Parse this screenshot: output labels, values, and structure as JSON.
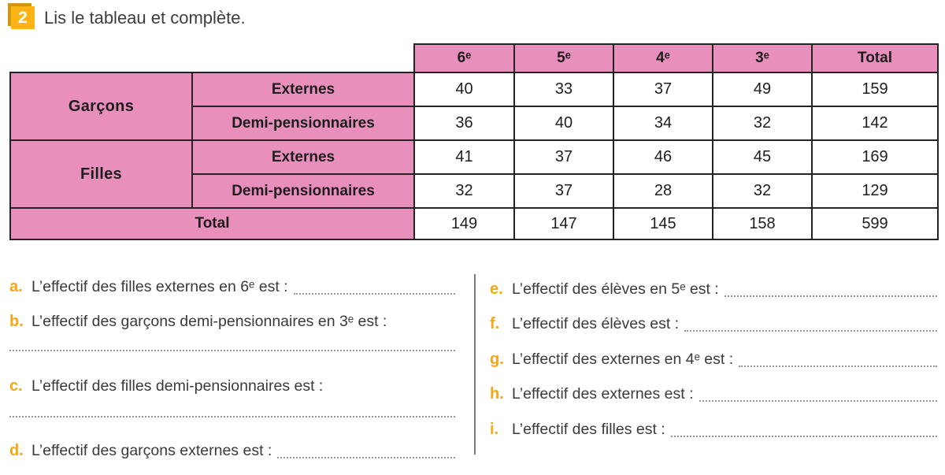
{
  "exercise": {
    "number": "2",
    "instruction": "Lis le tableau et complète."
  },
  "table": {
    "column_headers": [
      "6ᵉ",
      "5ᵉ",
      "4ᵉ",
      "3ᵉ",
      "Total"
    ],
    "row_groups": [
      {
        "group": "Garçons",
        "rows": [
          {
            "label": "Externes",
            "values": [
              40,
              33,
              37,
              49,
              159
            ]
          },
          {
            "label": "Demi-pensionnaires",
            "values": [
              36,
              40,
              34,
              32,
              142
            ]
          }
        ]
      },
      {
        "group": "Filles",
        "rows": [
          {
            "label": "Externes",
            "values": [
              41,
              37,
              46,
              45,
              169
            ]
          },
          {
            "label": "Demi-pensionnaires",
            "values": [
              32,
              37,
              28,
              32,
              129
            ]
          }
        ]
      }
    ],
    "total_row": {
      "label": "Total",
      "values": [
        149,
        147,
        145,
        158,
        599
      ]
    }
  },
  "questions": {
    "left": [
      {
        "letter": "a.",
        "text": "L’effectif des filles externes en 6ᵉ est :",
        "inline_dots": true,
        "full_dots_line": false
      },
      {
        "letter": "b.",
        "text": "L’effectif des garçons demi-pensionnaires en 3ᵉ est :",
        "inline_dots": false,
        "full_dots_line": true
      },
      {
        "letter": "c.",
        "text": "L’effectif des filles demi-pensionnaires est :",
        "inline_dots": false,
        "full_dots_line": true
      },
      {
        "letter": "d.",
        "text": "L’effectif des garçons externes est :",
        "inline_dots": true,
        "full_dots_line": false
      }
    ],
    "right": [
      {
        "letter": "e.",
        "text": "L’effectif des élèves en 5ᵉ est :",
        "inline_dots": true,
        "full_dots_line": false
      },
      {
        "letter": "f.",
        "text": "L’effectif des élèves est :",
        "inline_dots": true,
        "full_dots_line": false
      },
      {
        "letter": "g.",
        "text": "L’effectif des externes en 4ᵉ est :",
        "inline_dots": true,
        "full_dots_line": false
      },
      {
        "letter": "h.",
        "text": "L’effectif des externes est :",
        "inline_dots": true,
        "full_dots_line": false
      },
      {
        "letter": "i.",
        "text": "L’effectif des filles est :",
        "inline_dots": true,
        "full_dots_line": false
      }
    ]
  },
  "colors": {
    "table_header_pink": "#e98fbc",
    "table_border": "#232323",
    "table_text": "#1d1d1d",
    "question_text": "#3a3a3a",
    "question_letter_orange": "#f3a712",
    "badge_orange": "#fbb414",
    "badge_shadow_orange": "#cf9513",
    "dots_gray": "#949494",
    "divider_gray": "#7a7a7a"
  }
}
